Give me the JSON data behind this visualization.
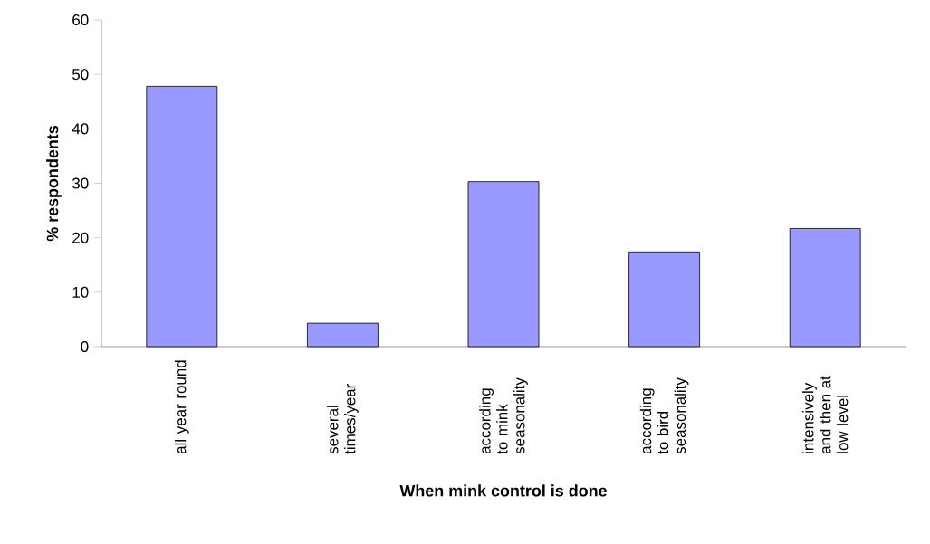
{
  "chart_data": {
    "type": "bar",
    "xlabel": "When mink control is done",
    "ylabel": "% respondents",
    "categories": [
      "all year round",
      "several times/year",
      "according to mink seasonality",
      "according to bird seasonality",
      "intensively and then at low level"
    ],
    "values": [
      47.8,
      4.3,
      30.3,
      17.4,
      21.7
    ],
    "color": "#9999ff",
    "ylim": [
      0,
      60
    ],
    "yticks": [
      0,
      10,
      20,
      30,
      40,
      50,
      60
    ],
    "grid": false
  }
}
